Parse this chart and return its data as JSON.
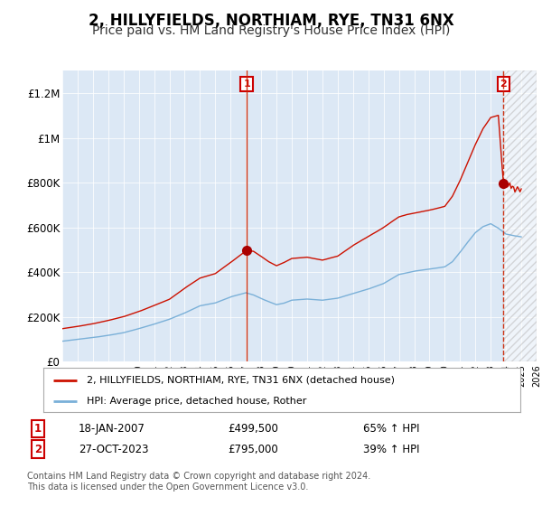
{
  "title": "2, HILLYFIELDS, NORTHIAM, RYE, TN31 6NX",
  "subtitle": "Price paid vs. HM Land Registry's House Price Index (HPI)",
  "title_fontsize": 12,
  "subtitle_fontsize": 10,
  "background_color": "#ffffff",
  "plot_bg_color": "#dce8f5",
  "legend_label_red": "2, HILLYFIELDS, NORTHIAM, RYE, TN31 6NX (detached house)",
  "legend_label_blue": "HPI: Average price, detached house, Rother",
  "sale1_date": "18-JAN-2007",
  "sale1_price": "£499,500",
  "sale1_hpi": "65% ↑ HPI",
  "sale1_year": 2007.05,
  "sale1_price_val": 499500,
  "sale2_date": "27-OCT-2023",
  "sale2_price": "£795,000",
  "sale2_hpi": "39% ↑ HPI",
  "sale2_year": 2023.83,
  "sale2_price_val": 795000,
  "footnote": "Contains HM Land Registry data © Crown copyright and database right 2024.\nThis data is licensed under the Open Government Licence v3.0.",
  "ylim": [
    0,
    1300000
  ],
  "yticks": [
    0,
    200000,
    400000,
    600000,
    800000,
    1000000,
    1200000
  ],
  "ytick_labels": [
    "£0",
    "£200K",
    "£400K",
    "£600K",
    "£800K",
    "£1M",
    "£1.2M"
  ],
  "xmin": 1995,
  "xmax": 2026
}
